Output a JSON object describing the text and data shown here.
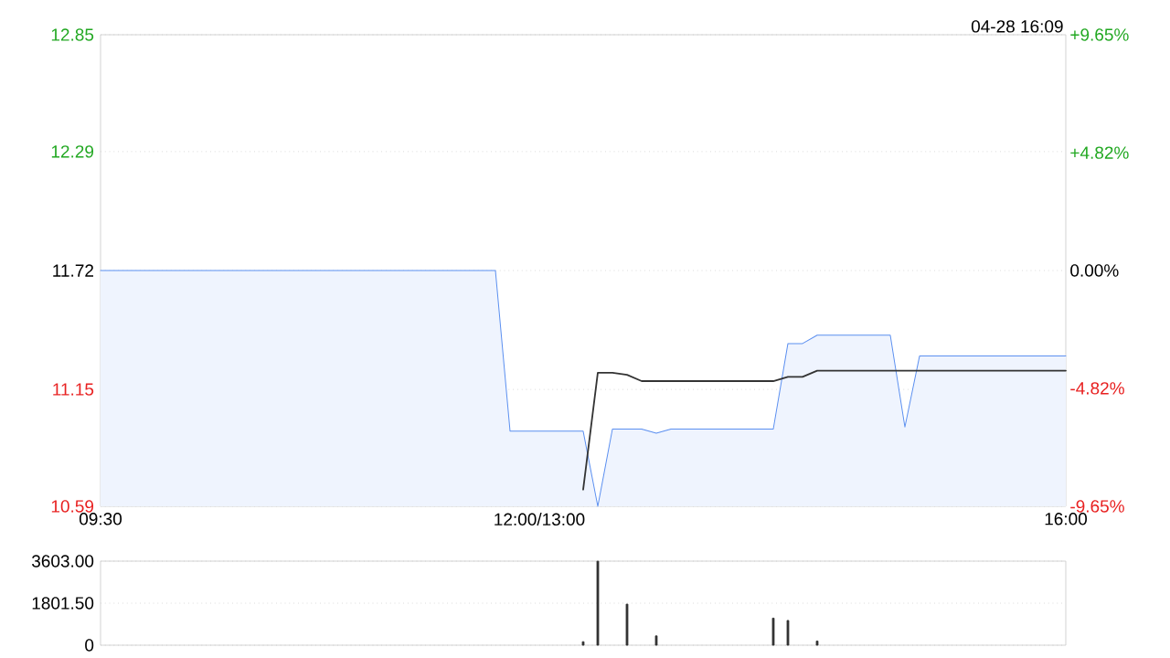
{
  "chart_data": [
    {
      "type": "line",
      "subtitle": "04-28 16:09",
      "categories": [
        "09:30",
        null,
        null,
        null,
        null,
        null,
        null,
        null,
        null,
        null,
        null,
        null,
        null,
        null,
        null,
        null,
        null,
        null,
        null,
        null,
        null,
        null,
        null,
        null,
        null,
        null,
        null,
        null,
        null,
        null,
        "12:00/13:00",
        null,
        null,
        null,
        null,
        null,
        null,
        null,
        null,
        null,
        null,
        null,
        null,
        null,
        null,
        null,
        null,
        null,
        null,
        null,
        null,
        null,
        null,
        null,
        null,
        null,
        null,
        null,
        null,
        null,
        null,
        null,
        null,
        null,
        null,
        null,
        "16:00"
      ],
      "ylim": [
        10.59,
        12.85
      ],
      "yticks": [
        10.59,
        11.15,
        11.72,
        12.29,
        12.85
      ],
      "y2lim": [
        -9.65,
        9.65
      ],
      "y2ticks": [
        {
          "value": -9.65,
          "label": "-9.65%"
        },
        {
          "value": -4.82,
          "label": "-4.82%"
        },
        {
          "value": 0,
          "label": "0.00%"
        },
        {
          "value": 4.82,
          "label": "+4.82%"
        },
        {
          "value": 9.65,
          "label": "+9.65%"
        }
      ],
      "grid": "y",
      "series": [
        {
          "type": "area",
          "color": "#5b8ff0",
          "values": [
            11.72,
            11.72,
            11.72,
            11.72,
            11.72,
            11.72,
            11.72,
            11.72,
            11.72,
            11.72,
            11.72,
            11.72,
            11.72,
            11.72,
            11.72,
            11.72,
            11.72,
            11.72,
            11.72,
            11.72,
            11.72,
            11.72,
            11.72,
            11.72,
            11.72,
            11.72,
            11.72,
            11.72,
            10.95,
            10.95,
            10.95,
            10.95,
            10.95,
            10.95,
            10.59,
            10.96,
            10.96,
            10.96,
            10.94,
            10.96,
            10.96,
            10.96,
            10.96,
            10.96,
            10.96,
            10.96,
            10.96,
            11.37,
            11.37,
            11.41,
            11.41,
            11.41,
            11.41,
            11.41,
            11.41,
            10.97,
            11.31,
            11.31,
            11.31,
            11.31,
            11.31,
            11.31,
            11.31,
            11.31,
            11.31,
            11.31,
            11.31
          ]
        },
        {
          "type": "line",
          "color": "#333333",
          "values": [
            null,
            null,
            null,
            null,
            null,
            null,
            null,
            null,
            null,
            null,
            null,
            null,
            null,
            null,
            null,
            null,
            null,
            null,
            null,
            null,
            null,
            null,
            null,
            null,
            null,
            null,
            null,
            null,
            null,
            null,
            null,
            null,
            null,
            10.67,
            11.23,
            11.23,
            11.22,
            11.19,
            11.19,
            11.19,
            11.19,
            11.19,
            11.19,
            11.19,
            11.19,
            11.19,
            11.19,
            11.21,
            11.21,
            11.24,
            11.24,
            11.24,
            11.24,
            11.24,
            11.24,
            11.24,
            11.24,
            11.24,
            11.24,
            11.24,
            11.24,
            11.24,
            11.24,
            11.24,
            11.24,
            11.24,
            11.24
          ]
        }
      ]
    },
    {
      "type": "bar",
      "ylim": [
        0,
        3603
      ],
      "categories": [
        null,
        null,
        null,
        null,
        null,
        null,
        null,
        null,
        null,
        null,
        null,
        null,
        null,
        null,
        null,
        null,
        null,
        null,
        null,
        null,
        null,
        null,
        null,
        null,
        null,
        null,
        null,
        null,
        null,
        null,
        null,
        null,
        null,
        null,
        null,
        null,
        null,
        null,
        null,
        null,
        null,
        null,
        null,
        null,
        null,
        null,
        null,
        null,
        null,
        null,
        null,
        null,
        null,
        null,
        null,
        null,
        null,
        null,
        null,
        null,
        null,
        null,
        null,
        null,
        null,
        null,
        null
      ],
      "yticks": [
        0,
        {
          "value": 1801.5,
          "label": "1801.50"
        },
        {
          "value": 3603,
          "label": "3603.00"
        }
      ],
      "grid": "y",
      "color": "#333333",
      "values": [
        null,
        null,
        null,
        null,
        null,
        null,
        null,
        null,
        null,
        null,
        null,
        null,
        null,
        null,
        null,
        null,
        null,
        null,
        null,
        null,
        null,
        null,
        null,
        null,
        null,
        null,
        null,
        null,
        null,
        null,
        null,
        null,
        null,
        150,
        3600,
        null,
        1760,
        null,
        400,
        null,
        null,
        null,
        null,
        null,
        null,
        null,
        1160,
        1060,
        null,
        180,
        null,
        null,
        null,
        null,
        null,
        null,
        null,
        null,
        null,
        null,
        null,
        null,
        null,
        null,
        null,
        null,
        null
      ]
    }
  ]
}
